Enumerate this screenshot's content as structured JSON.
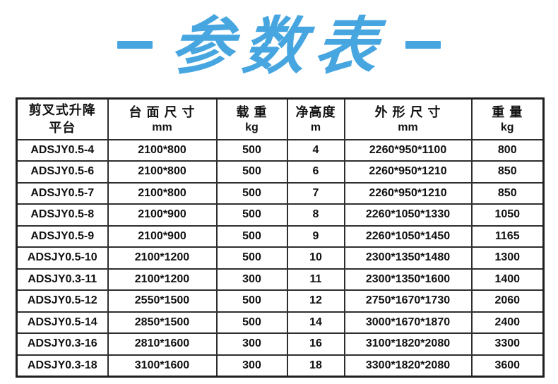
{
  "title": {
    "text": "参数表",
    "accent_color": "#47a6e0"
  },
  "table": {
    "columns": [
      {
        "line1": "剪叉式升降",
        "line2": "平台"
      },
      {
        "line1": "台 面 尺 寸",
        "line2": "mm"
      },
      {
        "line1": "载 重",
        "line2": "kg"
      },
      {
        "line1": "净高度",
        "line2": "m"
      },
      {
        "line1": "外 形 尺 寸",
        "line2": "mm"
      },
      {
        "line1": "重 量",
        "line2": "kg"
      }
    ],
    "rows": [
      [
        "ADSJY0.5-4",
        "2100*800",
        "500",
        "4",
        "2260*950*1100",
        "800"
      ],
      [
        "ADSJY0.5-6",
        "2100*800",
        "500",
        "6",
        "2260*950*1210",
        "850"
      ],
      [
        "ADSJY0.5-7",
        "2100*800",
        "500",
        "7",
        "2260*950*1210",
        "850"
      ],
      [
        "ADSJY0.5-8",
        "2100*900",
        "500",
        "8",
        "2260*1050*1330",
        "1050"
      ],
      [
        "ADSJY0.5-9",
        "2100*900",
        "500",
        "9",
        "2260*1050*1450",
        "1165"
      ],
      [
        "ADSJY0.5-10",
        "2100*1200",
        "500",
        "10",
        "2300*1350*1480",
        "1300"
      ],
      [
        "ADSJY0.3-11",
        "2100*1200",
        "300",
        "11",
        "2300*1350*1600",
        "1400"
      ],
      [
        "ADSJY0.5-12",
        "2550*1500",
        "500",
        "12",
        "2750*1670*1730",
        "2060"
      ],
      [
        "ADSJY0.5-14",
        "2850*1500",
        "500",
        "14",
        "3000*1670*1870",
        "2400"
      ],
      [
        "ADSJY0.3-16",
        "2810*1600",
        "300",
        "16",
        "3100*1820*2080",
        "3300"
      ],
      [
        "ADSJY0.3-18",
        "3100*1600",
        "300",
        "18",
        "3300*1820*2080",
        "3600"
      ]
    ]
  }
}
